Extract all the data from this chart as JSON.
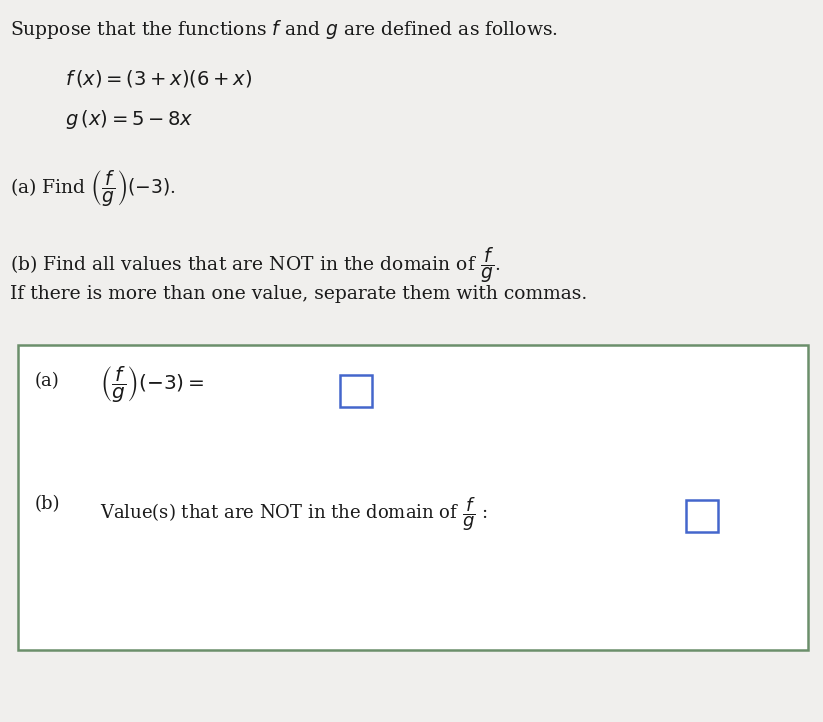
{
  "bg_color": "#f0efed",
  "box_bg_color": "#ffffff",
  "box_border_color": "#6b8f6b",
  "text_color": "#1a1a1a",
  "title_line": "Suppose that the functions $f$ and $g$ are defined as follows.",
  "f_def": "$f\\,(x)=(3+x)(6+x)$",
  "g_def": "$g\\,(x)=5-8x$",
  "part_a_find": "(a) Find $\\left(\\dfrac{f}{g}\\right)(-3)$.",
  "part_b_find": "(b) Find all values that are NOT in the domain of $\\dfrac{f}{g}$.",
  "part_b_find2": "If there is more than one value, separate them with commas.",
  "box_a_label": "(a)",
  "box_a_expr": "$\\left(\\dfrac{f}{g}\\right)(-3) =$",
  "box_b_label": "(b)",
  "box_b_expr": "Value(s) that are NOT in the domain of $\\dfrac{f}{g}$ :",
  "ans_box_color": "#4466cc",
  "font_size_title": 13.5,
  "font_size_body": 13.5,
  "font_size_box": 13.0,
  "font_size_defs": 14.0
}
